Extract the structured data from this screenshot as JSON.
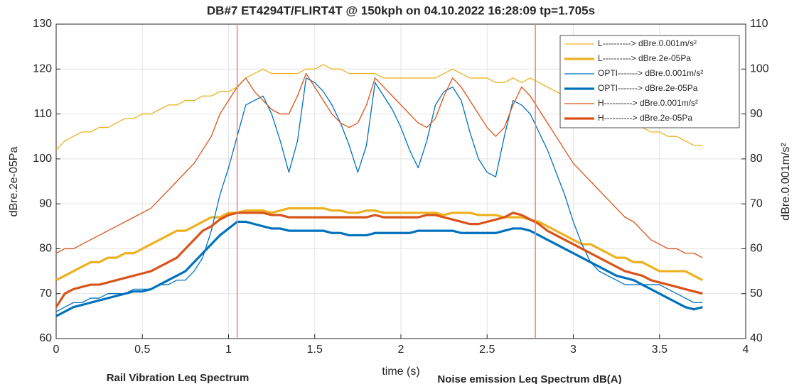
{
  "chart_data": {
    "type": "line",
    "title": "DB#7   ET4294T/FLIRT4T @ 150kph on 04.10.2022 16:28:09  tp=1.705s",
    "xlabel": "time (s)",
    "ylabel": "dBre.2e-05Pa",
    "y2label": "dBre.0.001m/s²",
    "annotations": [
      "Rail Vibration Leq Spectrum",
      "Noise emission Leq Spectrum dB(A)"
    ],
    "xlim": [
      0,
      4
    ],
    "xticks": [
      0,
      0.5,
      1,
      1.5,
      2,
      2.5,
      3,
      3.5,
      4
    ],
    "ylim": [
      60,
      130
    ],
    "yticks": [
      60,
      70,
      80,
      90,
      100,
      110,
      120,
      130
    ],
    "y2lim": [
      40,
      110
    ],
    "y2ticks": [
      40,
      50,
      60,
      70,
      80,
      90,
      100,
      110
    ],
    "grid": true,
    "legend": "upper right",
    "vlines": [
      1.05,
      2.78
    ],
    "vline_color": "#f08080",
    "x": [
      0,
      0.05,
      0.1,
      0.15,
      0.2,
      0.25,
      0.3,
      0.35,
      0.4,
      0.45,
      0.5,
      0.55,
      0.6,
      0.65,
      0.7,
      0.75,
      0.8,
      0.85,
      0.9,
      0.95,
      1,
      1.05,
      1.1,
      1.15,
      1.2,
      1.25,
      1.3,
      1.35,
      1.4,
      1.45,
      1.5,
      1.55,
      1.6,
      1.65,
      1.7,
      1.75,
      1.8,
      1.85,
      1.9,
      1.95,
      2,
      2.05,
      2.1,
      2.15,
      2.2,
      2.25,
      2.3,
      2.35,
      2.4,
      2.45,
      2.5,
      2.55,
      2.6,
      2.65,
      2.7,
      2.75,
      2.8,
      2.85,
      2.9,
      2.95,
      3,
      3.05,
      3.1,
      3.15,
      3.2,
      3.25,
      3.3,
      3.35,
      3.4,
      3.45,
      3.5,
      3.55,
      3.6,
      3.65,
      3.7,
      3.75
    ],
    "series": [
      {
        "name": "L----------> dBre.0.001m/s²",
        "color": "#EDB120",
        "width": 1.3,
        "axis": "y2",
        "values": [
          82,
          84,
          85,
          86,
          86,
          87,
          87,
          88,
          89,
          89,
          90,
          90,
          91,
          92,
          92,
          93,
          93,
          94,
          94,
          95,
          95,
          96,
          98,
          99,
          100,
          99,
          99,
          99,
          99,
          100,
          100,
          101,
          100,
          100,
          99,
          99,
          99,
          99,
          98,
          98,
          98,
          98,
          98,
          98,
          98,
          99,
          100,
          99,
          98,
          98,
          98,
          97,
          97,
          98,
          97,
          98,
          97,
          96,
          95,
          94,
          92,
          91,
          90,
          89,
          88,
          88,
          88,
          87,
          87,
          86,
          86,
          85,
          85,
          84,
          83,
          83
        ]
      },
      {
        "name": "L----------> dBre.2e-05Pa",
        "color": "#EDB120",
        "width": 3.2,
        "values": [
          73,
          74,
          75,
          76,
          77,
          77,
          78,
          78,
          79,
          79,
          80,
          81,
          82,
          83,
          84,
          84,
          85,
          86,
          87,
          87,
          88,
          88,
          88.5,
          88.5,
          88.5,
          88,
          88.5,
          89,
          89,
          89,
          89,
          89,
          88.5,
          88.5,
          88,
          88,
          88.5,
          88.5,
          88,
          88,
          88,
          88,
          88,
          88,
          88,
          87.5,
          88,
          88,
          88,
          87.5,
          87.5,
          87.5,
          87,
          87,
          87,
          86.5,
          86,
          85,
          84,
          83,
          82,
          81,
          81,
          80,
          79,
          78,
          78,
          77,
          77,
          76,
          75,
          75,
          75,
          75,
          74,
          73
        ]
      },
      {
        "name": "OPTI-------> dBre.0.001m/s²",
        "color": "#0072BD",
        "width": 1.3,
        "axis": "y2",
        "values": [
          46,
          47,
          48,
          48,
          49,
          49,
          50,
          50,
          50,
          51,
          51,
          51,
          52,
          52,
          53,
          53,
          55,
          58,
          64,
          72,
          78,
          85,
          92,
          93,
          94,
          90,
          84,
          77,
          84,
          98,
          97,
          95,
          92,
          88,
          83,
          77,
          83,
          97,
          94,
          91,
          87,
          82,
          78,
          84,
          92,
          95,
          96,
          93,
          86,
          80,
          77,
          76,
          85,
          93,
          92,
          90,
          86,
          82,
          77,
          72,
          66,
          61,
          57,
          55,
          54,
          53,
          52,
          52,
          52,
          52,
          52,
          51,
          50,
          49,
          48,
          48
        ]
      },
      {
        "name": "OPTI-------> dBre.2e-05Pa",
        "color": "#0072BD",
        "width": 3.2,
        "values": [
          65,
          66,
          67,
          67.5,
          68,
          68.5,
          69,
          69.5,
          70,
          70.5,
          70.5,
          71,
          72,
          73,
          74,
          75,
          77,
          79,
          81,
          83,
          84.5,
          86,
          86,
          85.5,
          85,
          84.5,
          84.5,
          84,
          84,
          84,
          84,
          84,
          83.5,
          83.5,
          83,
          83,
          83,
          83.5,
          83.5,
          83.5,
          83.5,
          83.5,
          84,
          84,
          84,
          84,
          84,
          83.5,
          83.5,
          83.5,
          83.5,
          83.5,
          84,
          84.5,
          84.5,
          84,
          83,
          82,
          81,
          80,
          79,
          78,
          77,
          76,
          75,
          74,
          73.5,
          73,
          72,
          71,
          70,
          69,
          68,
          67,
          66.5,
          67
        ]
      },
      {
        "name": "H----------> dBre.0.001m/s²",
        "color": "#D95319",
        "width": 1.3,
        "axis": "y2",
        "values": [
          59,
          60,
          60,
          61,
          62,
          63,
          64,
          65,
          66,
          67,
          68,
          69,
          71,
          73,
          75,
          77,
          79,
          82,
          85,
          90,
          93,
          96,
          98,
          95,
          93,
          91,
          90,
          90,
          94,
          99,
          96,
          93,
          90,
          88,
          87,
          88,
          92,
          98,
          96,
          94,
          92,
          90,
          88,
          87,
          89,
          94,
          98,
          96,
          93,
          90,
          87,
          85,
          87,
          92,
          96,
          94,
          91,
          88,
          85,
          82,
          79,
          77,
          75,
          73,
          71,
          69,
          67,
          66,
          64,
          62,
          61,
          60,
          60,
          59,
          59,
          58
        ]
      },
      {
        "name": "H----------> dBre.2e-05Pa",
        "color": "#D95319",
        "width": 3.2,
        "values": [
          67,
          70,
          71,
          71.5,
          72,
          72,
          72.5,
          73,
          73.5,
          74,
          74.5,
          75,
          76,
          77,
          78,
          80,
          82,
          84,
          85,
          86.5,
          87.5,
          88,
          88,
          88,
          88,
          87.5,
          87.5,
          87,
          87,
          87,
          87,
          87,
          87,
          87,
          87,
          87,
          87,
          87.5,
          87,
          87,
          87,
          87,
          87,
          87.5,
          87.5,
          87,
          86.5,
          86,
          85.5,
          85.5,
          86,
          86.5,
          87,
          88,
          87.5,
          86.5,
          85.5,
          84,
          83,
          82,
          81,
          80,
          79,
          78,
          77,
          76,
          75,
          74.5,
          74,
          73,
          72.5,
          72,
          71.5,
          71,
          70.5,
          70
        ]
      }
    ]
  }
}
